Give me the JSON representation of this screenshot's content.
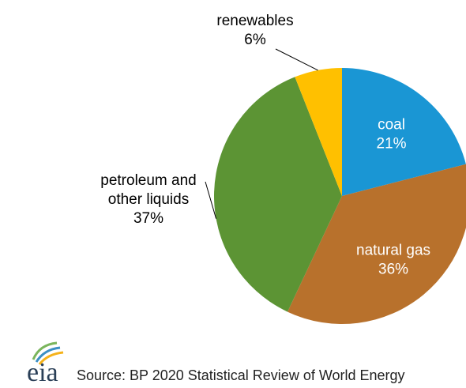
{
  "chart_data": {
    "type": "pie",
    "start_angle_deg": 90,
    "direction": "clockwise",
    "slices": [
      {
        "label": "coal",
        "value": 21,
        "value_label": "21%",
        "color": "#1a96d4",
        "label_placement": "inside"
      },
      {
        "label": "natural gas",
        "value": 36,
        "value_label": "36%",
        "color": "#b8712c",
        "label_placement": "inside"
      },
      {
        "label": "petroleum and other liquids",
        "label_lines": [
          "petroleum and",
          "other liquids"
        ],
        "value": 37,
        "value_label": "37%",
        "color": "#5c9434",
        "label_placement": "outside-left"
      },
      {
        "label": "renewables",
        "value": 6,
        "value_label": "6%",
        "color": "#ffc000",
        "label_placement": "outside-top"
      }
    ]
  },
  "footer": {
    "logo_text": "eia",
    "logo_colors": [
      "#7ab55c",
      "#3b8fc4",
      "#f5b21a"
    ],
    "source": "Source: BP 2020 Statistical Review of World Energy"
  }
}
